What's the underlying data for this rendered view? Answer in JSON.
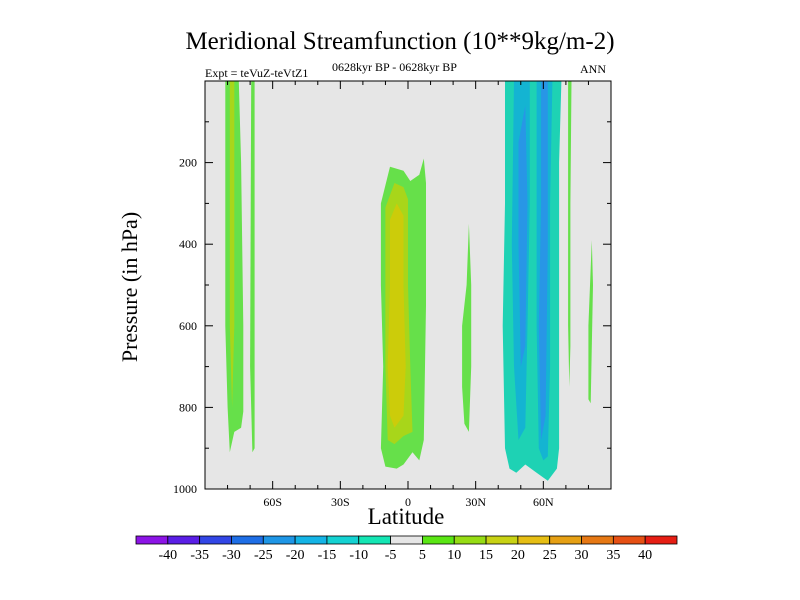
{
  "chart_data": {
    "type": "contour",
    "title": "Meridional Streamfunction (10**9kg/m-2)",
    "subtitle": "0628kyr BP - 0628kyr BP",
    "left_annotation": "Expt = teVuZ-teVtZ1",
    "right_annotation": "ANN",
    "xlabel": "Latitude",
    "ylabel": "Pressure (in hPa)",
    "xlim": [
      -90,
      90
    ],
    "ylim": [
      0,
      1000
    ],
    "y_reversed": true,
    "x_ticks": [
      -60,
      -30,
      0,
      30,
      60
    ],
    "x_tick_labels": [
      "60S",
      "30S",
      "0",
      "30N",
      "60N"
    ],
    "y_ticks": [
      200,
      400,
      600,
      800,
      1000
    ],
    "y_tick_labels": [
      "200",
      "400",
      "600",
      "800",
      "1000"
    ],
    "background_color": "#e6e6e6",
    "regions": [
      {
        "name": "south-high-lat-main",
        "level": 5,
        "color": "#66e04a",
        "points": [
          [
            -81,
            0
          ],
          [
            -75,
            0
          ],
          [
            -74,
            200
          ],
          [
            -73,
            600
          ],
          [
            -73,
            810
          ],
          [
            -74,
            850
          ],
          [
            -77,
            860
          ],
          [
            -79,
            910
          ],
          [
            -80,
            800
          ],
          [
            -81,
            600
          ]
        ]
      },
      {
        "name": "south-high-lat-core",
        "level": 10,
        "color": "#a8d61a",
        "points": [
          [
            -79,
            0
          ],
          [
            -77,
            0
          ],
          [
            -77,
            300
          ],
          [
            -77,
            600
          ],
          [
            -78,
            800
          ],
          [
            -79,
            600
          ],
          [
            -79,
            300
          ]
        ]
      },
      {
        "name": "south-high-lat-thin",
        "level": 5,
        "color": "#66e04a",
        "points": [
          [
            -69.5,
            0
          ],
          [
            -68,
            0
          ],
          [
            -68,
            500
          ],
          [
            -68,
            900
          ],
          [
            -69,
            910
          ],
          [
            -70,
            700
          ]
        ]
      },
      {
        "name": "equatorial-outer",
        "level": 5,
        "color": "#66e04a",
        "points": [
          [
            -12,
            300
          ],
          [
            -8,
            210
          ],
          [
            -2,
            220
          ],
          [
            1,
            245
          ],
          [
            5,
            230
          ],
          [
            7,
            190
          ],
          [
            8,
            250
          ],
          [
            8,
            550
          ],
          [
            7,
            880
          ],
          [
            5,
            930
          ],
          [
            2,
            910
          ],
          [
            -2,
            940
          ],
          [
            -5,
            950
          ],
          [
            -10,
            945
          ],
          [
            -12,
            900
          ],
          [
            -11,
            700
          ],
          [
            -12,
            500
          ]
        ]
      },
      {
        "name": "equatorial-mid",
        "level": 10,
        "color": "#a8d61a",
        "points": [
          [
            -10,
            310
          ],
          [
            -6,
            250
          ],
          [
            -2,
            260
          ],
          [
            0,
            290
          ],
          [
            0,
            500
          ],
          [
            1,
            700
          ],
          [
            2,
            860
          ],
          [
            -2,
            870
          ],
          [
            -6,
            890
          ],
          [
            -9,
            880
          ],
          [
            -10,
            700
          ],
          [
            -10,
            500
          ]
        ]
      },
      {
        "name": "equatorial-core",
        "level": 15,
        "color": "#cccc0a",
        "points": [
          [
            -8,
            340
          ],
          [
            -5,
            300
          ],
          [
            -2,
            330
          ],
          [
            -2,
            500
          ],
          [
            -1,
            700
          ],
          [
            -2,
            820
          ],
          [
            -6,
            850
          ],
          [
            -8,
            820
          ],
          [
            -9,
            700
          ],
          [
            -8,
            500
          ]
        ]
      },
      {
        "name": "lat-25n-feature",
        "level": 5,
        "color": "#66e04a",
        "points": [
          [
            24,
            600
          ],
          [
            26,
            500
          ],
          [
            27,
            350
          ],
          [
            28,
            500
          ],
          [
            28,
            700
          ],
          [
            27,
            860
          ],
          [
            25,
            840
          ],
          [
            24,
            750
          ]
        ]
      },
      {
        "name": "northern-blue-outer",
        "level": -5,
        "color": "#1ed2b4",
        "points": [
          [
            43,
            0
          ],
          [
            68,
            0
          ],
          [
            67,
            200
          ],
          [
            67,
            500
          ],
          [
            67,
            900
          ],
          [
            66,
            950
          ],
          [
            62,
            980
          ],
          [
            57,
            960
          ],
          [
            52,
            940
          ],
          [
            48,
            960
          ],
          [
            45,
            950
          ],
          [
            43,
            900
          ],
          [
            42,
            600
          ],
          [
            43,
            300
          ]
        ]
      },
      {
        "name": "northern-blue-mid-left",
        "level": -10,
        "color": "#14b4d2",
        "points": [
          [
            47,
            0
          ],
          [
            54,
            0
          ],
          [
            54,
            300
          ],
          [
            53,
            600
          ],
          [
            52,
            850
          ],
          [
            49,
            880
          ],
          [
            47,
            700
          ],
          [
            46,
            400
          ]
        ]
      },
      {
        "name": "northern-blue-mid-right",
        "level": -10,
        "color": "#14b4d2",
        "points": [
          [
            57,
            0
          ],
          [
            64,
            0
          ],
          [
            63,
            300
          ],
          [
            63,
            700
          ],
          [
            62,
            920
          ],
          [
            60,
            930
          ],
          [
            58,
            900
          ],
          [
            57,
            600
          ]
        ]
      },
      {
        "name": "northern-blue-core-left",
        "level": -15,
        "color": "#2896e6",
        "points": [
          [
            49,
            150
          ],
          [
            52,
            60
          ],
          [
            53,
            300
          ],
          [
            52,
            650
          ],
          [
            50,
            700
          ],
          [
            49,
            400
          ]
        ]
      },
      {
        "name": "northern-blue-core-right",
        "level": -15,
        "color": "#2896e6",
        "points": [
          [
            59,
            0
          ],
          [
            62,
            0
          ],
          [
            62,
            400
          ],
          [
            61,
            820
          ],
          [
            59,
            880
          ],
          [
            58,
            600
          ],
          [
            59,
            300
          ]
        ]
      },
      {
        "name": "north-70n-strip",
        "level": 5,
        "color": "#66e04a",
        "points": [
          [
            71,
            0
          ],
          [
            72.5,
            0
          ],
          [
            72,
            300
          ],
          [
            72,
            650
          ],
          [
            71.5,
            750
          ],
          [
            71,
            600
          ],
          [
            71,
            300
          ]
        ]
      },
      {
        "name": "north-80n-strip",
        "level": 5,
        "color": "#66e04a",
        "points": [
          [
            80,
            600
          ],
          [
            81.5,
            390
          ],
          [
            82,
            500
          ],
          [
            81,
            790
          ],
          [
            80,
            780
          ]
        ]
      }
    ],
    "colorbar": {
      "labels": [
        "-40",
        "-35",
        "-30",
        "-25",
        "-20",
        "-15",
        "-10",
        "-5",
        "5",
        "10",
        "15",
        "20",
        "25",
        "30",
        "35",
        "40"
      ],
      "colors": [
        "#8c14e6",
        "#5a1ee6",
        "#3246e6",
        "#1e6ee6",
        "#1e96e6",
        "#14b4e6",
        "#14d2d2",
        "#14e6b4",
        "#e6e6e6",
        "#5ae614",
        "#96dc14",
        "#c8d214",
        "#e6be14",
        "#e6a014",
        "#e67814",
        "#e65014",
        "#e61e14"
      ]
    }
  }
}
